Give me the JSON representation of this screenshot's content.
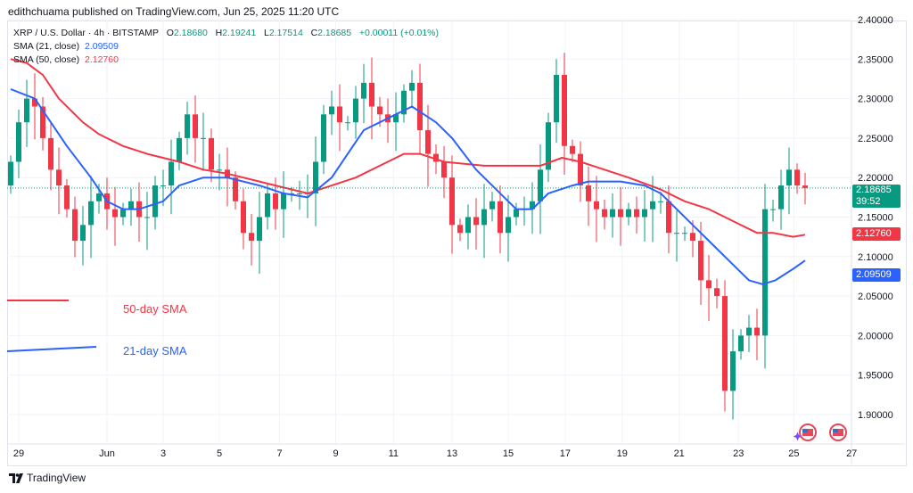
{
  "publisher": "edithchuama published on TradingView.com, Jun 25, 2025 11:20 UTC",
  "legend": {
    "symbol": "XRP / U.S. Dollar · 4h · BITSTAMP",
    "open_label": "O",
    "open": "2.18680",
    "high_label": "H",
    "high": "2.19241",
    "low_label": "L",
    "low": "2.17514",
    "close_label": "C",
    "close": "2.18685",
    "change": "+0.00011 (+0.01%)",
    "sma21_label": "SMA (21, close)",
    "sma21_value": "2.09509",
    "sma50_label": "SMA (50, close)",
    "sma50_value": "2.12760"
  },
  "annotations": {
    "sma50": "50-day SMA",
    "sma21": "21-day SMA"
  },
  "price_tags": {
    "last": "2.18685",
    "countdown": "39:52",
    "sma50": "2.12760",
    "sma21": "2.09509"
  },
  "logo": "TradingView",
  "colors": {
    "up": "#089981",
    "down": "#f23645",
    "sma21": "#2962ff",
    "sma50": "#f23645"
  },
  "chart_data": {
    "type": "candlestick",
    "ylim": [
      1.88,
      2.405
    ],
    "y_ticks": [
      "2.40000",
      "2.35000",
      "2.30000",
      "2.25000",
      "2.20000",
      "2.15000",
      "2.10000",
      "2.05000",
      "2.00000",
      "1.95000",
      "1.90000"
    ],
    "x_ticks": [
      {
        "label": "29",
        "i": 1
      },
      {
        "label": "Jun",
        "i": 12
      },
      {
        "label": "3",
        "i": 19
      },
      {
        "label": "5",
        "i": 26
      },
      {
        "label": "7",
        "i": 33.5
      },
      {
        "label": "9",
        "i": 40.5
      },
      {
        "label": "11",
        "i": 47.7
      },
      {
        "label": "13",
        "i": 55
      },
      {
        "label": "15",
        "i": 62
      },
      {
        "label": "17",
        "i": 69.1
      },
      {
        "label": "19",
        "i": 76.2
      },
      {
        "label": "21",
        "i": 83.3
      },
      {
        "label": "23",
        "i": 90.7
      },
      {
        "label": "25",
        "i": 97.6
      },
      {
        "label": "27",
        "i": 104.8
      }
    ],
    "first_open": 2.19,
    "closes": [
      2.22,
      2.27,
      2.3,
      2.29,
      2.25,
      2.21,
      2.19,
      2.16,
      2.12,
      2.14,
      2.17,
      2.18,
      2.16,
      2.15,
      2.16,
      2.17,
      2.15,
      2.15,
      2.19,
      2.19,
      2.22,
      2.25,
      2.28,
      2.25,
      2.25,
      2.21,
      2.21,
      2.2,
      2.17,
      2.13,
      2.12,
      2.15,
      2.18,
      2.16,
      2.18,
      2.18,
      2.18,
      2.18,
      2.22,
      2.28,
      2.29,
      2.27,
      2.27,
      2.3,
      2.32,
      2.29,
      2.28,
      2.27,
      2.28,
      2.31,
      2.32,
      2.26,
      2.23,
      2.22,
      2.2,
      2.14,
      2.13,
      2.15,
      2.14,
      2.16,
      2.17,
      2.13,
      2.15,
      2.16,
      2.16,
      2.17,
      2.21,
      2.27,
      2.33,
      2.24,
      2.23,
      2.19,
      2.17,
      2.16,
      2.15,
      2.16,
      2.15,
      2.16,
      2.15,
      2.16,
      2.17,
      2.17,
      2.13,
      2.13,
      2.13,
      2.12,
      2.07,
      2.06,
      2.05,
      1.93,
      1.98,
      2.0,
      2.01,
      2.0,
      2.16,
      2.16,
      2.19,
      2.21,
      2.19,
      2.18685
    ],
    "sma21": [
      [
        0,
        2.312
      ],
      [
        3,
        2.3
      ],
      [
        5,
        2.27
      ],
      [
        7,
        2.24
      ],
      [
        10,
        2.2
      ],
      [
        12,
        2.17
      ],
      [
        14,
        2.16
      ],
      [
        16,
        2.16
      ],
      [
        19,
        2.17
      ],
      [
        21,
        2.19
      ],
      [
        24,
        2.2
      ],
      [
        27,
        2.2
      ],
      [
        31,
        2.19
      ],
      [
        34,
        2.18
      ],
      [
        37,
        2.175
      ],
      [
        40,
        2.2
      ],
      [
        42,
        2.23
      ],
      [
        44,
        2.26
      ],
      [
        48,
        2.28
      ],
      [
        50,
        2.29
      ],
      [
        51.5,
        2.28
      ],
      [
        53,
        2.27
      ],
      [
        55,
        2.25
      ],
      [
        58,
        2.21
      ],
      [
        61,
        2.18
      ],
      [
        63,
        2.16
      ],
      [
        65,
        2.16
      ],
      [
        67,
        2.18
      ],
      [
        70,
        2.19
      ],
      [
        72,
        2.195
      ],
      [
        76,
        2.195
      ],
      [
        79,
        2.19
      ],
      [
        81,
        2.18
      ],
      [
        83,
        2.16
      ],
      [
        85,
        2.14
      ],
      [
        87,
        2.12
      ],
      [
        90,
        2.09
      ],
      [
        92,
        2.07
      ],
      [
        93.7,
        2.065
      ],
      [
        95.3,
        2.07
      ],
      [
        97.6,
        2.085
      ],
      [
        99,
        2.095
      ]
    ],
    "sma50": [
      [
        0,
        2.35
      ],
      [
        2,
        2.345
      ],
      [
        4,
        2.33
      ],
      [
        6,
        2.3
      ],
      [
        9,
        2.27
      ],
      [
        11,
        2.255
      ],
      [
        14,
        2.24
      ],
      [
        17,
        2.23
      ],
      [
        21,
        2.22
      ],
      [
        24,
        2.21
      ],
      [
        27,
        2.205
      ],
      [
        31,
        2.195
      ],
      [
        33,
        2.19
      ],
      [
        35,
        2.185
      ],
      [
        37,
        2.18
      ],
      [
        40,
        2.19
      ],
      [
        43,
        2.2
      ],
      [
        46,
        2.215
      ],
      [
        49,
        2.23
      ],
      [
        51,
        2.23
      ],
      [
        54,
        2.22
      ],
      [
        59,
        2.215
      ],
      [
        63,
        2.215
      ],
      [
        66,
        2.215
      ],
      [
        68.7,
        2.225
      ],
      [
        71,
        2.22
      ],
      [
        74,
        2.21
      ],
      [
        77,
        2.2
      ],
      [
        81,
        2.185
      ],
      [
        84,
        2.17
      ],
      [
        87,
        2.16
      ],
      [
        91,
        2.14
      ],
      [
        93,
        2.13
      ],
      [
        95,
        2.13
      ],
      [
        97.5,
        2.125
      ],
      [
        99,
        2.1276
      ]
    ]
  }
}
